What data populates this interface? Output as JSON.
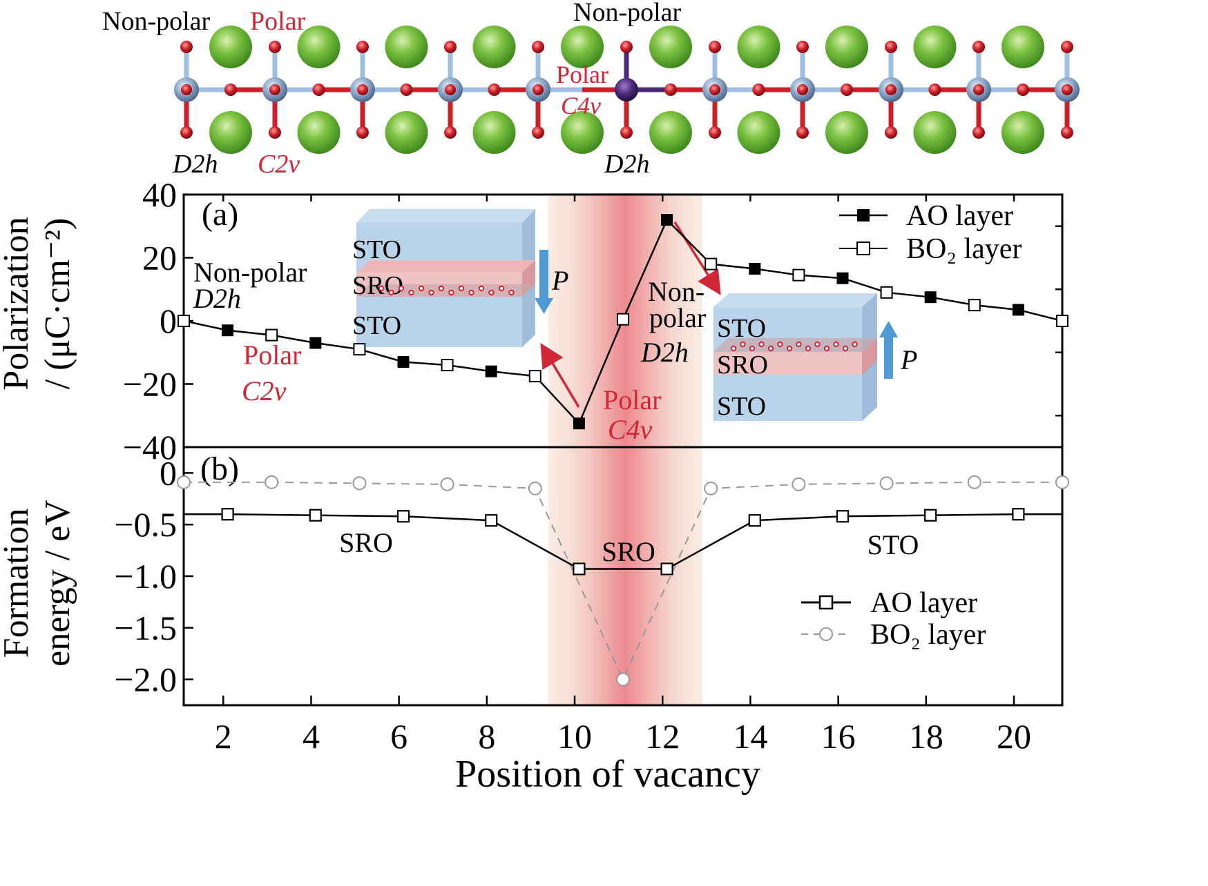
{
  "structure": {
    "labels": {
      "nonpolar_left": "Non-polar",
      "polar_left": "Polar",
      "nonpolar_center": "Non-polar",
      "polar_center": "Polar",
      "c4v_center": "C4v",
      "d2h_left": "D2h",
      "c2v_left": "C2v",
      "d2h_center": "D2h"
    },
    "colors": {
      "sr_atom": "#7cc242",
      "ti_atom": "#8aa6c8",
      "o_atom": "#cc1f27",
      "ru_atom": "#4b2a7a",
      "bond_blue": "#9ebfe0",
      "bond_red": "#cc1f27"
    }
  },
  "panel_a": {
    "label": "(a)",
    "ylabel_1": "Polarization",
    "ylabel_2": "/ (μC·cm⁻²)",
    "legend": [
      "AO layer",
      "BO₂ layer"
    ],
    "annotations": {
      "nonpolar_left": "Non-polar",
      "d2h_left": "D2h",
      "polar_left": "Polar",
      "c2v_left": "C2v",
      "polar_center": "Polar",
      "c4v_center": "C4v",
      "nonpolar_right_1": "Non-",
      "nonpolar_right_2": "polar",
      "d2h_right": "D2h"
    },
    "inset_left": {
      "layers": [
        "STO",
        "SRO",
        "STO"
      ],
      "arrow_label": "P",
      "arrow_direction": "down"
    },
    "inset_right": {
      "layers": [
        "STO",
        "SRO",
        "STO"
      ],
      "arrow_label": "P",
      "arrow_direction": "up"
    }
  },
  "panel_b": {
    "label": "(b)",
    "ylabel_1": "Formation",
    "ylabel_2": "energy / eV",
    "legend": [
      "AO layer",
      "BO₂ layer"
    ],
    "region_labels": [
      "SRO",
      "SRO",
      "STO"
    ]
  },
  "xlabel": "Position of vacancy",
  "chart_data": [
    {
      "type": "line",
      "panel": "(a)",
      "ylabel": "Polarization / (μC·cm⁻²)",
      "xlabel": "Position of vacancy",
      "xlim": [
        1.1,
        21.1
      ],
      "ylim": [
        -40,
        40
      ],
      "xticks": [
        2,
        4,
        6,
        8,
        10,
        12,
        14,
        16,
        18,
        20
      ],
      "yticks": [
        -40,
        -20,
        0,
        20,
        40
      ],
      "highlight_region": [
        9.4,
        12.9
      ],
      "series": [
        {
          "name": "AO layer",
          "marker": "filled-square",
          "points": [
            [
              2.1,
              -3
            ],
            [
              4.1,
              -7
            ],
            [
              6.1,
              -13
            ],
            [
              8.1,
              -16
            ],
            [
              10.1,
              -32.5
            ],
            [
              12.1,
              32
            ],
            [
              14.1,
              16.5
            ],
            [
              16.1,
              13.5
            ],
            [
              18.1,
              7.5
            ],
            [
              20.1,
              3.5
            ]
          ]
        },
        {
          "name": "BO₂ layer",
          "marker": "open-square",
          "points": [
            [
              1.1,
              0
            ],
            [
              3.1,
              -4.5
            ],
            [
              5.1,
              -9
            ],
            [
              7.1,
              -14
            ],
            [
              9.1,
              -17.5
            ],
            [
              11.1,
              0.5
            ],
            [
              13.1,
              18
            ],
            [
              15.1,
              14.5
            ],
            [
              17.1,
              9
            ],
            [
              19.1,
              5
            ],
            [
              21.1,
              0
            ]
          ]
        }
      ],
      "line_order": [
        [
          1.1,
          0
        ],
        [
          2.1,
          -3
        ],
        [
          3.1,
          -4.5
        ],
        [
          4.1,
          -7
        ],
        [
          5.1,
          -9
        ],
        [
          6.1,
          -13
        ],
        [
          7.1,
          -14
        ],
        [
          8.1,
          -16
        ],
        [
          9.1,
          -17.5
        ],
        [
          10.1,
          -32.5
        ],
        [
          11.1,
          0.5
        ],
        [
          12.1,
          32
        ],
        [
          13.1,
          18
        ],
        [
          14.1,
          16.5
        ],
        [
          15.1,
          14.5
        ],
        [
          16.1,
          13.5
        ],
        [
          17.1,
          9
        ],
        [
          18.1,
          7.5
        ],
        [
          19.1,
          5
        ],
        [
          20.1,
          3.5
        ],
        [
          21.1,
          0
        ]
      ]
    },
    {
      "type": "line",
      "panel": "(b)",
      "ylabel": "Formation energy / eV",
      "xlabel": "Position of vacancy",
      "xlim": [
        1.1,
        21.1
      ],
      "ylim": [
        -2.25,
        0.25
      ],
      "xticks": [
        2,
        4,
        6,
        8,
        10,
        12,
        14,
        16,
        18,
        20
      ],
      "yticks": [
        -2.0,
        -1.5,
        -1.0,
        -0.5,
        0
      ],
      "ytick_labels": [
        "−2.0",
        "−1.5",
        "−1.0",
        "−0.5",
        "0"
      ],
      "highlight_region": [
        9.4,
        12.9
      ],
      "series": [
        {
          "name": "AO layer",
          "marker": "open-square",
          "style": "solid",
          "points": [
            [
              1.1,
              -0.4
            ],
            [
              2.1,
              -0.4
            ],
            [
              4.1,
              -0.41
            ],
            [
              6.1,
              -0.42
            ],
            [
              8.1,
              -0.46
            ],
            [
              10.1,
              -0.93
            ],
            [
              12.1,
              -0.93
            ],
            [
              14.1,
              -0.46
            ],
            [
              16.1,
              -0.42
            ],
            [
              18.1,
              -0.41
            ],
            [
              20.1,
              -0.4
            ],
            [
              21.1,
              -0.4
            ]
          ]
        },
        {
          "name": "BO₂ layer",
          "marker": "open-circle",
          "style": "dashed",
          "points": [
            [
              1.1,
              -0.09
            ],
            [
              3.1,
              -0.09
            ],
            [
              5.1,
              -0.1
            ],
            [
              7.1,
              -0.11
            ],
            [
              9.1,
              -0.15
            ],
            [
              11.1,
              -2.0
            ],
            [
              13.1,
              -0.15
            ],
            [
              15.1,
              -0.11
            ],
            [
              17.1,
              -0.1
            ],
            [
              19.1,
              -0.09
            ],
            [
              21.1,
              -0.09
            ]
          ]
        }
      ]
    }
  ]
}
